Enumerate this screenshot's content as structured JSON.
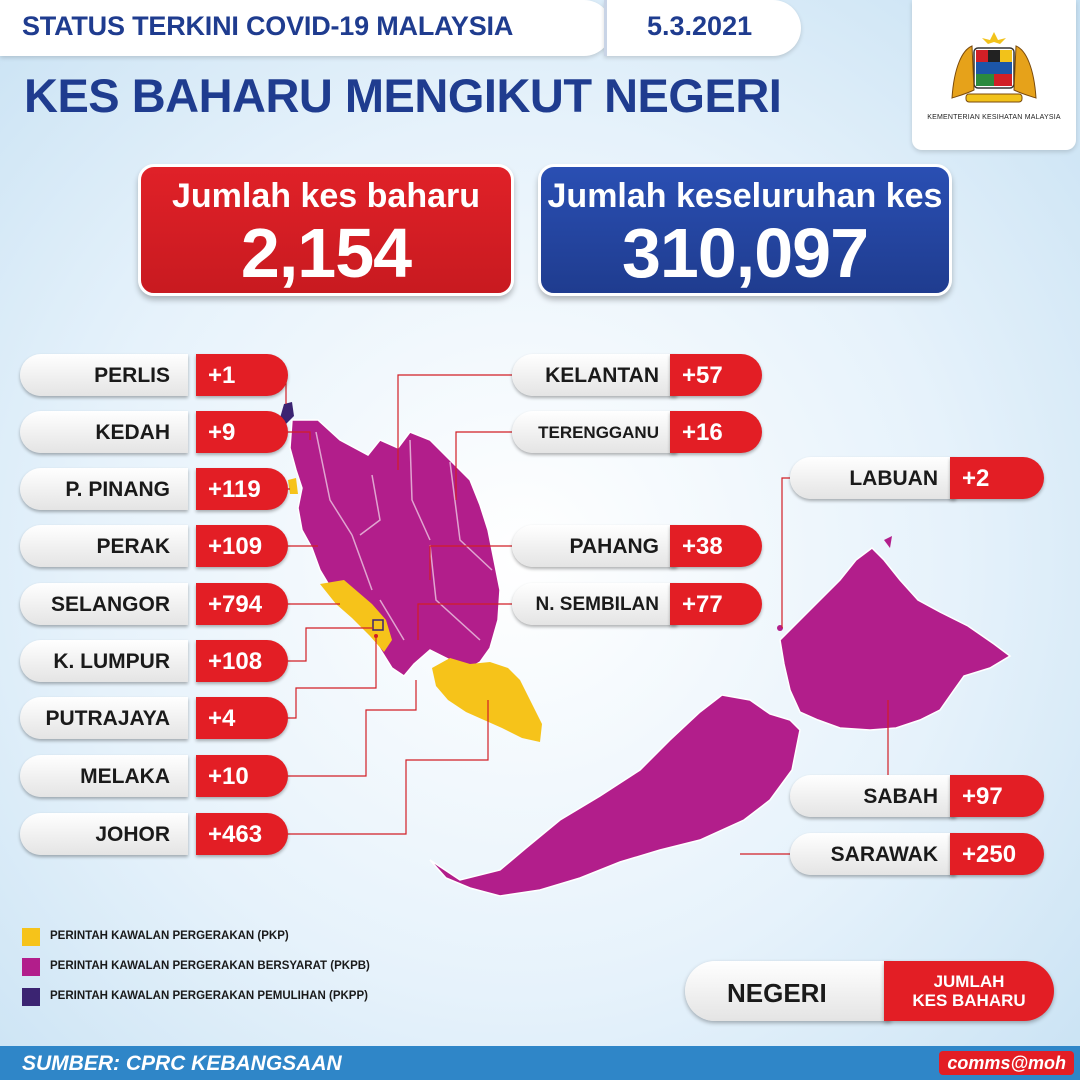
{
  "header": {
    "title": "STATUS TERKINI COVID-19 MALAYSIA",
    "date": "5.3.2021",
    "main_title": "KES BAHARU MENGIKUT NEGERI",
    "logo_caption": "KEMENTERIAN KESIHATAN MALAYSIA"
  },
  "totals": {
    "new_label": "Jumlah kes baharu",
    "new_value": "2,154",
    "cumulative_label": "Jumlah keseluruhan kes",
    "cumulative_value": "310,097"
  },
  "states_left": [
    {
      "name": "PERLIS",
      "value": "+1"
    },
    {
      "name": "KEDAH",
      "value": "+9"
    },
    {
      "name": "P. PINANG",
      "value": "+119"
    },
    {
      "name": "PERAK",
      "value": "+109"
    },
    {
      "name": "SELANGOR",
      "value": "+794"
    },
    {
      "name": "K. LUMPUR",
      "value": "+108"
    },
    {
      "name": "PUTRAJAYA",
      "value": "+4"
    },
    {
      "name": "MELAKA",
      "value": "+10"
    },
    {
      "name": "JOHOR",
      "value": "+463"
    }
  ],
  "states_center": [
    {
      "name": "KELANTAN",
      "value": "+57"
    },
    {
      "name": "TERENGGANU",
      "value": "+16"
    },
    {
      "name": "PAHANG",
      "value": "+38"
    },
    {
      "name": "N. SEMBILAN",
      "value": "+77"
    }
  ],
  "states_right": [
    {
      "name": "LABUAN",
      "value": "+2"
    },
    {
      "name": "SABAH",
      "value": "+97"
    },
    {
      "name": "SARAWAK",
      "value": "+250"
    }
  ],
  "legend": [
    {
      "label": "PERINTAH KAWALAN PERGERAKAN (PKP)",
      "color": "#f6c31a"
    },
    {
      "label": "PERINTAH KAWALAN PERGERAKAN BERSYARAT (PKPB)",
      "color": "#b21e8b"
    },
    {
      "label": "PERINTAH KAWALAN PERGERAKAN PEMULIHAN (PKPP)",
      "color": "#3b2472"
    }
  ],
  "key": {
    "name_label": "NEGERI",
    "value_label": "JUMLAH\nKES BAHARU"
  },
  "footer": {
    "source": "SUMBER: CPRC KEBANGSAAN",
    "tag": "comms@moh"
  },
  "colors": {
    "accent_blue": "#1f3c8f",
    "accent_red": "#e31e25",
    "pkp_yellow": "#f6c31a",
    "pkpb_magenta": "#b21e8b",
    "pkpp_purple": "#3b2472"
  }
}
